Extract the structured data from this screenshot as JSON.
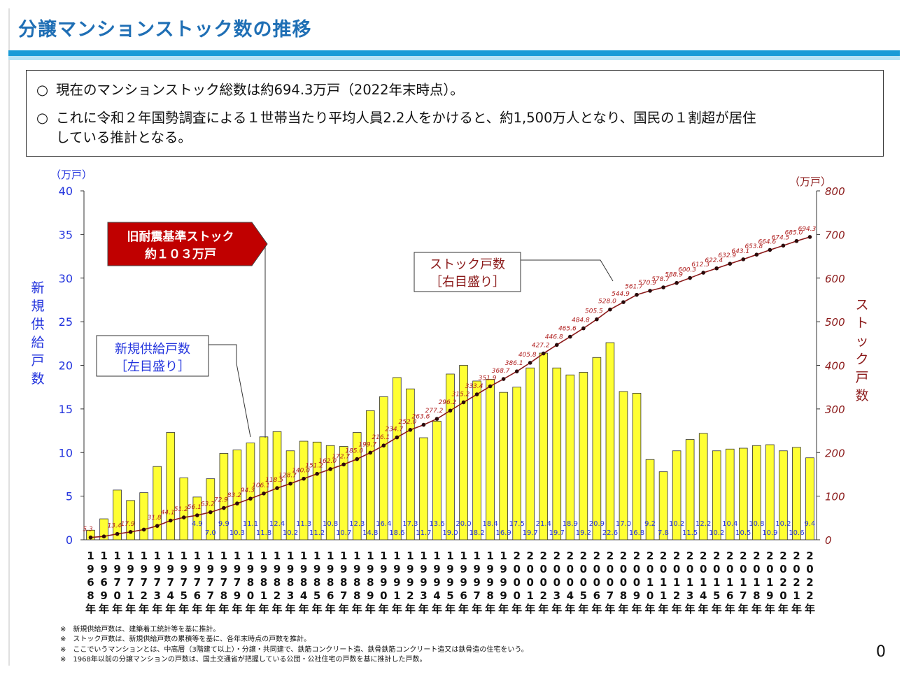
{
  "header": {
    "title": "分譲マンションストック数の推移"
  },
  "summary": {
    "mark": "○",
    "line1": "現在のマンションストック総数は約694.3万戸（2022年末時点）。",
    "line2a": "これに令和２年国勢調査による１世帯当たり平均人員2.2人をかけると、約1,500万人となり、国民の１割超が居住",
    "line2b": "している推計となる。"
  },
  "chart_data": {
    "type": "bar",
    "left_unit": "（万戸）",
    "right_unit": "（万戸）",
    "left_axis_title": "新規供給戸数",
    "right_axis_title": "ストック戸数",
    "ylim_left": [
      0,
      40
    ],
    "ylim_right": [
      0,
      800
    ],
    "yticks_left": [
      "0",
      "5",
      "10",
      "15",
      "20",
      "25",
      "30",
      "35",
      "40"
    ],
    "yticks_right": [
      "0",
      "100",
      "200",
      "300",
      "400",
      "500",
      "600",
      "700",
      "800"
    ],
    "categories": [
      "1968年",
      "1969年",
      "1970年",
      "1971年",
      "1972年",
      "1973年",
      "1974年",
      "1975年",
      "1976年",
      "1977年",
      "1978年",
      "1979年",
      "1980年",
      "1981年",
      "1982年",
      "1983年",
      "1984年",
      "1985年",
      "1986年",
      "1987年",
      "1988年",
      "1989年",
      "1990年",
      "1991年",
      "1992年",
      "1993年",
      "1994年",
      "1995年",
      "1996年",
      "1997年",
      "1998年",
      "1999年",
      "2000年",
      "2001年",
      "2002年",
      "2003年",
      "2004年",
      "2005年",
      "2006年",
      "2007年",
      "2008年",
      "2009年",
      "2010年",
      "2011年",
      "2012年",
      "2013年",
      "2014年",
      "2015年",
      "2016年",
      "2017年",
      "2018年",
      "2019年",
      "2020年",
      "2021年",
      "2022年"
    ],
    "series": [
      {
        "name": "新規供給戸数［左目盛り］",
        "axis": "left",
        "color": "#ffff33",
        "values": [
          1.1,
          2.4,
          5.7,
          4.5,
          5.4,
          8.4,
          12.3,
          7.1,
          4.9,
          7.0,
          9.9,
          10.3,
          11.1,
          11.8,
          12.4,
          10.2,
          11.3,
          11.2,
          10.8,
          10.7,
          12.3,
          14.8,
          16.4,
          18.6,
          17.3,
          11.7,
          13.6,
          19.0,
          20.0,
          18.2,
          18.4,
          16.9,
          17.5,
          19.7,
          21.4,
          19.7,
          18.9,
          19.2,
          20.9,
          22.6,
          17.0,
          16.8,
          9.2,
          7.8,
          10.2,
          11.5,
          12.2,
          10.2,
          10.4,
          10.5,
          10.8,
          10.9,
          10.2,
          10.6,
          9.4
        ],
        "labels": [
          "",
          "",
          "",
          "",
          "",
          "",
          "",
          "",
          "4.9",
          "7.0",
          "9.9",
          "10.3",
          "11.1",
          "11.8",
          "12.4",
          "10.2",
          "11.3",
          "11.2",
          "10.8",
          "10.7",
          "12.3",
          "14.8",
          "16.4",
          "18.6",
          "17.3",
          "11.7",
          "13.6",
          "19.0",
          "20.0",
          "18.2",
          "18.4",
          "16.9",
          "17.5",
          "19.7",
          "21.4",
          "19.7",
          "18.9",
          "19.2",
          "20.9",
          "22.6",
          "17.0",
          "16.8",
          "9.2",
          "7.8",
          "10.2",
          "11.5",
          "12.2",
          "10.2",
          "10.4",
          "10.5",
          "10.8",
          "10.9",
          "10.2",
          "10.6",
          "9.4"
        ]
      },
      {
        "name": "ストック戸数［右目盛り］",
        "axis": "right",
        "color": "#8b1a1a",
        "values": [
          5.3,
          7.7,
          13.4,
          17.9,
          23.4,
          31.8,
          44.1,
          51.2,
          56.1,
          63.2,
          72.9,
          83.2,
          94.3,
          106.1,
          118.5,
          128.7,
          140.0,
          151.2,
          162.0,
          172.7,
          185.0,
          199.7,
          216.1,
          234.7,
          252.0,
          263.6,
          277.2,
          296.2,
          315.2,
          333.4,
          351.9,
          368.7,
          386.1,
          405.8,
          427.2,
          446.8,
          465.6,
          484.8,
          505.5,
          528.0,
          544.9,
          561.7,
          570.9,
          578.7,
          588.9,
          600.3,
          612.3,
          622.4,
          632.9,
          643.1,
          653.8,
          664.6,
          674.5,
          685.0,
          694.3
        ],
        "labels": [
          "5.3",
          "",
          "13.4",
          "17.9",
          "",
          "31.8",
          "44.1",
          "51.2",
          "56.1",
          "63.2",
          "72.9",
          "83.2",
          "94.3",
          "106.1",
          "118.5",
          "128.7",
          "140.0",
          "151.2",
          "162.0",
          "172.7",
          "185.0",
          "199.7",
          "216.1",
          "234.7",
          "252.0",
          "263.6",
          "277.2",
          "296.2",
          "315.2",
          "333.4",
          "351.9",
          "368.7",
          "386.1",
          "405.8",
          "427.2",
          "446.8",
          "465.6",
          "484.8",
          "505.5",
          "528.0",
          "544.9",
          "561.7",
          "570.9",
          "578.7",
          "588.9",
          "600.3",
          "612.3",
          "622.4",
          "632.9",
          "643.1",
          "653.8",
          "664.6",
          "674.5",
          "685.0",
          "694.3"
        ]
      }
    ],
    "annotations": {
      "old_standard_line1": "旧耐震基準ストック",
      "old_standard_line2": "約１０３万戸",
      "callout_supply_line1": "新規供給戸数",
      "callout_supply_line2": "［左目盛り］",
      "callout_stock_line1": "ストック戸数",
      "callout_stock_line2": "［右目盛り］"
    },
    "grid": false
  },
  "notes": [
    "※　新規供給戸数は、建築着工統計等を基に推計。",
    "※　ストック戸数は、新規供給戸数の累積等を基に、各年末時点の戸数を推計。",
    "※　ここでいうマンションとは、中高層（3階建て以上）・分譲・共同建で、鉄筋コンクリート造、鉄骨鉄筋コンクリート造又は鉄骨造の住宅をいう。",
    "※　1968年以前の分譲マンションの戸数は、国土交通省が把握している公団・公社住宅の戸数を基に推計した戸数。"
  ],
  "page_number": "0",
  "colors": {
    "title": "#1f6fb5",
    "accent_bar": "#1a9bd7",
    "left_axis": "#2233dd",
    "right_axis": "#8b1a1a",
    "bar": "#ffff33",
    "callout_red": "#c00000"
  }
}
